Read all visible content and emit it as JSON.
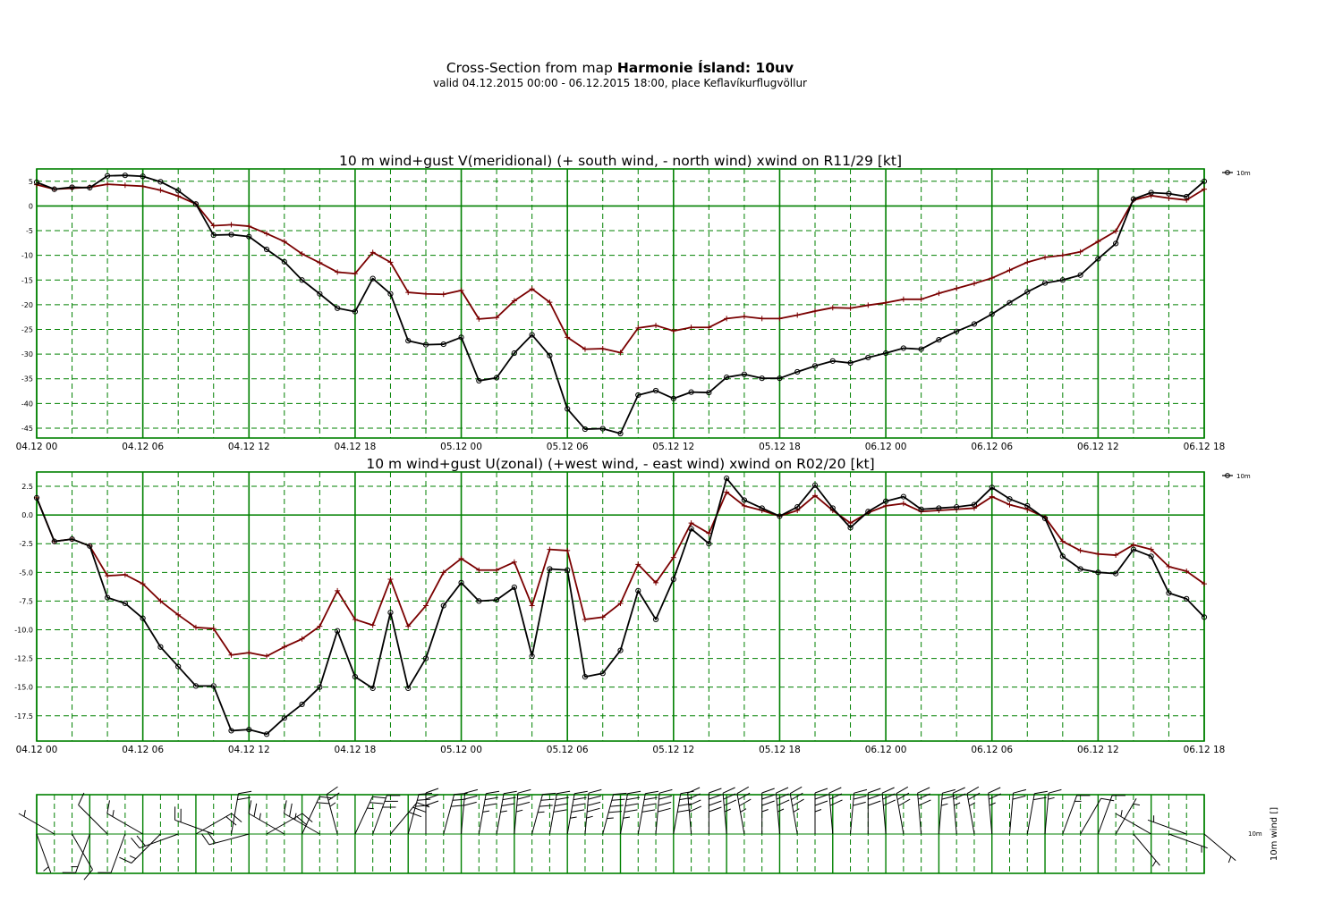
{
  "header": {
    "title_prefix": "Cross-Section from map",
    "title_bold": "Harmonie Ísland: 10uv",
    "subtitle": "valid 04.12.2015 00:00 - 06.12.2015 18:00, place Keflavíkurflugvöllur"
  },
  "colors": {
    "grid": "#008000",
    "wind_line": "#000000",
    "gust_line": "#7a0000"
  },
  "chart_data": [
    {
      "type": "line",
      "title": "10 m wind+gust V(meridional) (+ south wind, - north wind) xwind on R11/29 [kt]",
      "x_tick_labels": [
        "04.12 00",
        "04.12 06",
        "04.12 12",
        "04.12 18",
        "05.12 00",
        "05.12 06",
        "05.12 12",
        "05.12 18",
        "06.12 00",
        "06.12 06",
        "06.12 12",
        "06.12 18"
      ],
      "x_hours_range": [
        0,
        66
      ],
      "y_ticks": [
        5,
        0,
        -5,
        -10,
        -15,
        -20,
        -25,
        -30,
        -35,
        -40,
        -45
      ],
      "y_tick_labels": [
        "5",
        "0",
        "-5",
        "-10",
        "-15",
        "-20",
        "-25",
        "-30",
        "-35",
        "-40",
        "-45"
      ],
      "ylim": [
        -47,
        7.5
      ],
      "legend": "10m",
      "legend_position": "right-top",
      "series": [
        {
          "name": "10m",
          "marker": "circle",
          "values": [
            4.8,
            3.4,
            3.8,
            3.7,
            6.1,
            6.2,
            6.0,
            4.9,
            3.1,
            0.4,
            -5.9,
            -5.8,
            -6.2,
            -8.8,
            -11.3,
            -15.0,
            -17.8,
            -20.7,
            -21.4,
            -14.7,
            -17.8,
            -27.3,
            -28.1,
            -28.0,
            -26.6,
            -35.4,
            -34.8,
            -29.8,
            -26.1,
            -30.3,
            -41.1,
            -45.2,
            -45.1,
            -46.1,
            -38.3,
            -37.4,
            -39.0,
            -37.7,
            -37.8,
            -34.7,
            -34.1,
            -34.9,
            -34.9,
            -33.6,
            -32.4,
            -31.4,
            -31.8,
            -30.7,
            -29.8,
            -28.8,
            -29.0,
            -27.1,
            -25.4,
            -23.9,
            -21.9,
            -19.6,
            -17.4,
            -15.6,
            -15.0,
            -14.0,
            -10.7,
            -7.6,
            1.4,
            2.7,
            2.5,
            1.9,
            5.0
          ]
        },
        {
          "name": "gust",
          "marker": "plus",
          "values": [
            4.3,
            3.4,
            3.6,
            3.8,
            4.4,
            4.2,
            4.0,
            3.2,
            2.0,
            0.4,
            -4.0,
            -3.8,
            -4.1,
            -5.6,
            -7.2,
            -9.7,
            -11.5,
            -13.4,
            -13.7,
            -9.4,
            -11.4,
            -17.5,
            -17.8,
            -17.9,
            -17.1,
            -22.9,
            -22.6,
            -19.2,
            -16.8,
            -19.5,
            -26.6,
            -29.0,
            -28.9,
            -29.7,
            -24.7,
            -24.2,
            -25.3,
            -24.6,
            -24.6,
            -22.8,
            -22.4,
            -22.8,
            -22.8,
            -22.1,
            -21.3,
            -20.6,
            -20.7,
            -20.1,
            -19.6,
            -18.9,
            -18.9,
            -17.7,
            -16.7,
            -15.7,
            -14.6,
            -13.0,
            -11.4,
            -10.4,
            -10.0,
            -9.3,
            -7.2,
            -5.1,
            1.2,
            2.1,
            1.6,
            1.2,
            3.4
          ]
        }
      ]
    },
    {
      "type": "line",
      "title": "10 m wind+gust U(zonal) (+west wind, - east wind) xwind on R02/20 [kt]",
      "x_tick_labels": [
        "04.12 00",
        "04.12 06",
        "04.12 12",
        "04.12 18",
        "05.12 00",
        "05.12 06",
        "05.12 12",
        "05.12 18",
        "06.12 00",
        "06.12 06",
        "06.12 12",
        "06.12 18"
      ],
      "x_hours_range": [
        0,
        66
      ],
      "y_ticks": [
        2.5,
        0,
        -2.5,
        -5,
        -7.5,
        -10,
        -12.5,
        -15,
        -17.5
      ],
      "y_tick_labels": [
        "2.5",
        "0.0",
        "-2.5",
        "-5.0",
        "-7.5",
        "-10.0",
        "-12.5",
        "-15.0",
        "-17.5"
      ],
      "ylim": [
        -19.7,
        3.75
      ],
      "legend": "10m",
      "legend_position": "right-top",
      "series": [
        {
          "name": "10m",
          "marker": "circle",
          "values": [
            1.5,
            -2.3,
            -2.1,
            -2.7,
            -7.2,
            -7.7,
            -9.0,
            -11.5,
            -13.2,
            -14.9,
            -14.9,
            -18.8,
            -18.7,
            -19.1,
            -17.7,
            -16.5,
            -15.0,
            -10.1,
            -14.1,
            -15.1,
            -8.5,
            -15.1,
            -12.5,
            -7.9,
            -5.9,
            -7.5,
            -7.4,
            -6.3,
            -12.3,
            -4.7,
            -4.8,
            -14.1,
            -13.8,
            -11.8,
            -6.6,
            -9.1,
            -5.6,
            -1.2,
            -2.5,
            3.2,
            1.3,
            0.6,
            -0.1,
            0.7,
            2.6,
            0.6,
            -1.1,
            0.3,
            1.2,
            1.6,
            0.5,
            0.6,
            0.7,
            0.9,
            2.4,
            1.4,
            0.8,
            -0.3,
            -3.6,
            -4.7,
            -5.0,
            -5.1,
            -3.0,
            -3.6,
            -6.8,
            -7.3,
            -8.9
          ]
        },
        {
          "name": "gust",
          "marker": "plus",
          "values": [
            1.5,
            -2.3,
            -2.1,
            -2.7,
            -5.3,
            -5.2,
            -6.0,
            -7.5,
            -8.7,
            -9.8,
            -9.9,
            -12.2,
            -12.0,
            -12.3,
            -11.5,
            -10.8,
            -9.7,
            -6.6,
            -9.1,
            -9.6,
            -5.6,
            -9.7,
            -7.9,
            -5.0,
            -3.8,
            -4.8,
            -4.8,
            -4.1,
            -7.9,
            -3.0,
            -3.1,
            -9.1,
            -8.9,
            -7.7,
            -4.3,
            -5.9,
            -3.7,
            -0.7,
            -1.6,
            2.0,
            0.8,
            0.4,
            -0.1,
            0.4,
            1.7,
            0.4,
            -0.7,
            0.2,
            0.8,
            1.0,
            0.3,
            0.4,
            0.5,
            0.6,
            1.6,
            0.9,
            0.5,
            -0.2,
            -2.3,
            -3.1,
            -3.4,
            -3.5,
            -2.6,
            -3.0,
            -4.5,
            -4.9,
            -6.0
          ]
        }
      ]
    },
    {
      "type": "wind_barbs",
      "title": "",
      "ylabel": "10m wind []",
      "level_label": "10m",
      "x_hours_range": [
        0,
        66
      ],
      "barbs": [
        {
          "hour": 0,
          "speed_kt": 5,
          "dir_deg": 160
        },
        {
          "hour": 1,
          "speed_kt": 5,
          "dir_deg": 300
        },
        {
          "hour": 2,
          "speed_kt": 10,
          "dir_deg": 150
        },
        {
          "hour": 3,
          "speed_kt": 15,
          "dir_deg": 200
        },
        {
          "hour": 4,
          "speed_kt": 10,
          "dir_deg": 315
        },
        {
          "hour": 5,
          "speed_kt": 10,
          "dir_deg": 200
        },
        {
          "hour": 6,
          "speed_kt": 15,
          "dir_deg": 300
        },
        {
          "hour": 7,
          "speed_kt": 15,
          "dir_deg": 225
        },
        {
          "hour": 8,
          "speed_kt": 20,
          "dir_deg": 250
        },
        {
          "hour": 9,
          "speed_kt": 20,
          "dir_deg": 60
        },
        {
          "hour": 10,
          "speed_kt": 20,
          "dir_deg": 290
        },
        {
          "hour": 11,
          "speed_kt": 20,
          "dir_deg": 10
        },
        {
          "hour": 12,
          "speed_kt": 20,
          "dir_deg": 255
        },
        {
          "hour": 13,
          "speed_kt": 20,
          "dir_deg": 60
        },
        {
          "hour": 14,
          "speed_kt": 25,
          "dir_deg": 300
        },
        {
          "hour": 15,
          "speed_kt": 20,
          "dir_deg": 25
        },
        {
          "hour": 16,
          "speed_kt": 25,
          "dir_deg": 300
        },
        {
          "hour": 17,
          "speed_kt": 25,
          "dir_deg": 345
        },
        {
          "hour": 18,
          "speed_kt": 25,
          "dir_deg": 25
        },
        {
          "hour": 19,
          "speed_kt": 30,
          "dir_deg": 20
        },
        {
          "hour": 20,
          "speed_kt": 30,
          "dir_deg": 40
        },
        {
          "hour": 21,
          "speed_kt": 30,
          "dir_deg": 15
        },
        {
          "hour": 22,
          "speed_kt": 30,
          "dir_deg": 0
        },
        {
          "hour": 23,
          "speed_kt": 30,
          "dir_deg": 15
        },
        {
          "hour": 24,
          "speed_kt": 30,
          "dir_deg": 5
        },
        {
          "hour": 25,
          "speed_kt": 35,
          "dir_deg": 10
        },
        {
          "hour": 26,
          "speed_kt": 35,
          "dir_deg": 10
        },
        {
          "hour": 27,
          "speed_kt": 35,
          "dir_deg": 5
        },
        {
          "hour": 28,
          "speed_kt": 35,
          "dir_deg": 15
        },
        {
          "hour": 29,
          "speed_kt": 40,
          "dir_deg": 10
        },
        {
          "hour": 30,
          "speed_kt": 45,
          "dir_deg": 10
        },
        {
          "hour": 31,
          "speed_kt": 45,
          "dir_deg": 5
        },
        {
          "hour": 32,
          "speed_kt": 45,
          "dir_deg": 15
        },
        {
          "hour": 33,
          "speed_kt": 45,
          "dir_deg": 10
        },
        {
          "hour": 34,
          "speed_kt": 40,
          "dir_deg": 10
        },
        {
          "hour": 35,
          "speed_kt": 40,
          "dir_deg": 5
        },
        {
          "hour": 36,
          "speed_kt": 40,
          "dir_deg": 10
        },
        {
          "hour": 37,
          "speed_kt": 40,
          "dir_deg": 355
        },
        {
          "hour": 38,
          "speed_kt": 40,
          "dir_deg": 0
        },
        {
          "hour": 39,
          "speed_kt": 35,
          "dir_deg": 355
        },
        {
          "hour": 40,
          "speed_kt": 35,
          "dir_deg": 350
        },
        {
          "hour": 41,
          "speed_kt": 35,
          "dir_deg": 0
        },
        {
          "hour": 42,
          "speed_kt": 35,
          "dir_deg": 355
        },
        {
          "hour": 43,
          "speed_kt": 35,
          "dir_deg": 350
        },
        {
          "hour": 44,
          "speed_kt": 35,
          "dir_deg": 0
        },
        {
          "hour": 45,
          "speed_kt": 30,
          "dir_deg": 355
        },
        {
          "hour": 46,
          "speed_kt": 30,
          "dir_deg": 5
        },
        {
          "hour": 47,
          "speed_kt": 30,
          "dir_deg": 0
        },
        {
          "hour": 48,
          "speed_kt": 30,
          "dir_deg": 355
        },
        {
          "hour": 49,
          "speed_kt": 30,
          "dir_deg": 350
        },
        {
          "hour": 50,
          "speed_kt": 30,
          "dir_deg": 355
        },
        {
          "hour": 51,
          "speed_kt": 25,
          "dir_deg": 5
        },
        {
          "hour": 52,
          "speed_kt": 25,
          "dir_deg": 355
        },
        {
          "hour": 53,
          "speed_kt": 25,
          "dir_deg": 350
        },
        {
          "hour": 54,
          "speed_kt": 25,
          "dir_deg": 355
        },
        {
          "hour": 55,
          "speed_kt": 20,
          "dir_deg": 5
        },
        {
          "hour": 56,
          "speed_kt": 20,
          "dir_deg": 10
        },
        {
          "hour": 57,
          "speed_kt": 15,
          "dir_deg": 5
        },
        {
          "hour": 58,
          "speed_kt": 15,
          "dir_deg": 20
        },
        {
          "hour": 59,
          "speed_kt": 10,
          "dir_deg": 30
        },
        {
          "hour": 60,
          "speed_kt": 10,
          "dir_deg": 20
        },
        {
          "hour": 61,
          "speed_kt": 5,
          "dir_deg": 30
        },
        {
          "hour": 62,
          "speed_kt": 5,
          "dir_deg": 140
        },
        {
          "hour": 63,
          "speed_kt": 5,
          "dir_deg": 300
        },
        {
          "hour": 64,
          "speed_kt": 5,
          "dir_deg": 110
        },
        {
          "hour": 65,
          "speed_kt": 5,
          "dir_deg": 290
        },
        {
          "hour": 66,
          "speed_kt": 5,
          "dir_deg": 130
        }
      ]
    }
  ]
}
